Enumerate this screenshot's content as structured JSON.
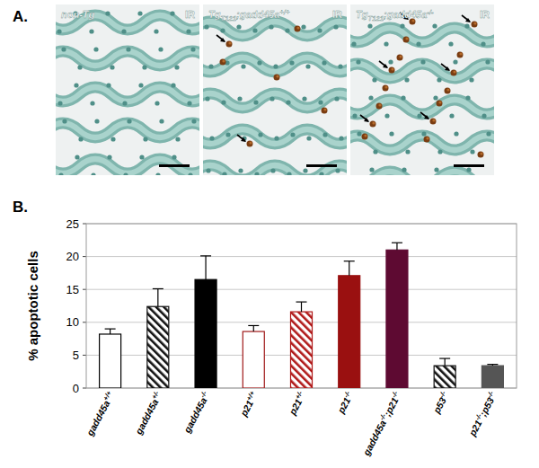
{
  "panel_a": {
    "letter": "A.",
    "images": [
      {
        "label": "non-Tg",
        "treatment": "IR"
      },
      {
        "label": "TgT121;gadd45a+/+",
        "treatment": "IR"
      },
      {
        "label": "TgT121;gadd45a-/-",
        "treatment": "IR"
      }
    ]
  },
  "panel_b": {
    "letter": "B."
  },
  "chart_data": {
    "type": "bar",
    "y_label": "% apoptotic cells",
    "categories": [
      "gadd45a+/+",
      "gadd45a+/-",
      "gadd45a-/-",
      "p21+/+",
      "p21+/-",
      "p21-/-",
      "gadd45a-/-;p21-/-",
      "p53-/-",
      "p21-/-;p53-/-"
    ],
    "values": [
      8.2,
      12.4,
      16.5,
      8.6,
      11.6,
      17.1,
      21.0,
      3.4,
      3.4
    ],
    "errors": [
      0.8,
      2.7,
      3.6,
      0.9,
      1.5,
      2.2,
      1.1,
      1.1,
      0.2
    ],
    "colors": [
      "#ffffff",
      "#111111",
      "#000000",
      "#ffffff",
      "#b01818",
      "#9a1010",
      "#5e0a32",
      "#111111",
      "#555555"
    ],
    "ylim": [
      0,
      25
    ],
    "yticks": [
      0,
      5,
      10,
      15,
      20,
      25
    ],
    "grid": true
  }
}
